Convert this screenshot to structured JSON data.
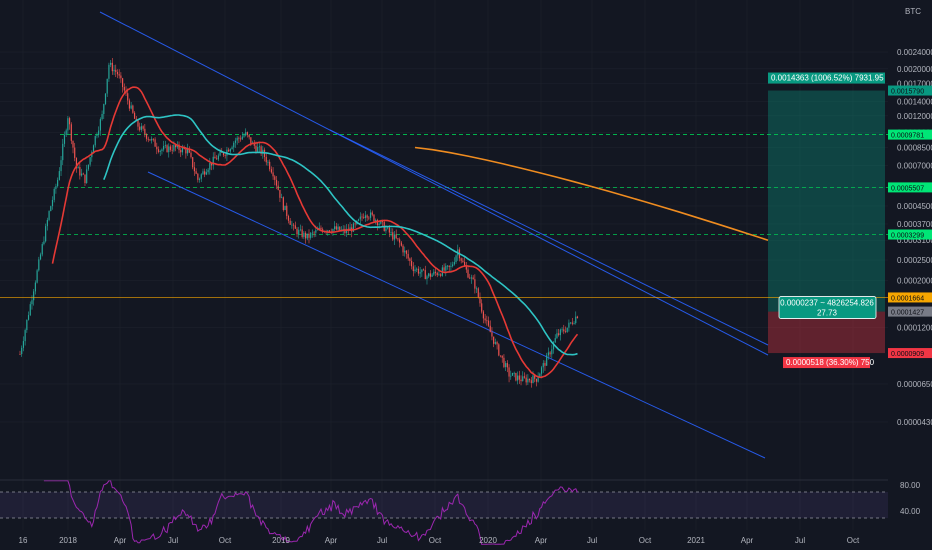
{
  "chart_data": {
    "type": "candlestick",
    "symbol_unit": "BTC",
    "y_scale": "log",
    "ylim": [
      3e-05,
      0.0034
    ],
    "y_ticks": [
      "0.0024000",
      "0.0020000",
      "0.0017000",
      "0.0014000",
      "0.0012000",
      "0.0010000",
      "0.0008500",
      "0.0007000",
      "0.0005500",
      "0.0004500",
      "0.0003700",
      "0.0003100",
      "0.0002500",
      "0.0002000",
      "0.0001200",
      "0.0000650",
      "0.0000430"
    ],
    "x_ticks": [
      "16",
      "2018",
      "Apr",
      "Jul",
      "Oct",
      "2019",
      "Apr",
      "Jul",
      "Oct",
      "2020",
      "Apr",
      "Jul",
      "Oct",
      "2021",
      "Apr",
      "Jul",
      "Oct"
    ],
    "price_tags": [
      {
        "label": "0.0015790",
        "value": 0.001579,
        "color": "#089981"
      },
      {
        "label": "0.0009781",
        "value": 0.0009781,
        "color": "#00e676"
      },
      {
        "label": "0.0005507",
        "value": 0.0005507,
        "color": "#00e676"
      },
      {
        "label": "0.0003299",
        "value": 0.0003299,
        "color": "#00e676"
      },
      {
        "label": "0.0001664",
        "value": 0.0001664,
        "color": "#f7a600"
      },
      {
        "label": "0.0001427",
        "value": 0.0001427,
        "color": "#787b86"
      },
      {
        "label": "0.0000909",
        "value": 9.09e-05,
        "color": "#f23645"
      }
    ],
    "horizontal_levels": [
      0.0009781,
      0.0005507,
      0.0003299
    ],
    "current_price": 0.0001664,
    "position": {
      "entry": 0.0001427,
      "target": 0.001579,
      "stop": 9.09e-05,
      "target_label": "0.0014363 (1006.52%) 7931.95",
      "stop_label": "0.0000518 (36.30%) 750",
      "info_line1": "0.0000237 ~ 4826254.826",
      "info_line2": "27.73"
    },
    "series": [
      {
        "name": "",
        "color": "#2ec4c4"
      },
      {
        "name": "",
        "color": "#e53935"
      },
      {
        "name": "",
        "color": "#ef8c20"
      }
    ],
    "rsi": {
      "levels": [
        "80.00",
        "40.00"
      ]
    }
  }
}
